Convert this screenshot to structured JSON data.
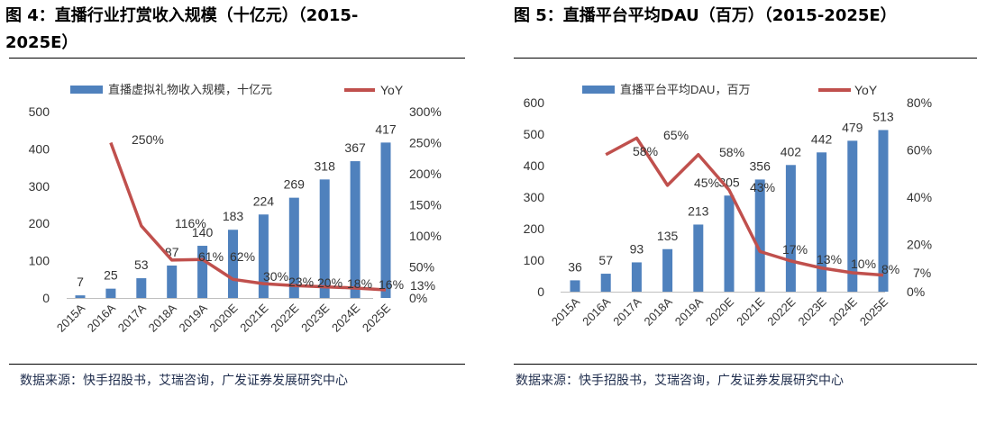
{
  "charts": [
    {
      "title_line1": "图 4：直播行业打赏收入规模（十亿元）（2015-",
      "title_line2": "2025E）",
      "source": "数据来源：快手招股书，艾瑞咨询，广发证券发展研究中心",
      "legend_bar": "直播虚拟礼物收入规模，十亿元",
      "legend_line": "YoY",
      "bar_label_list": [
        "7",
        "25",
        "53",
        "87",
        "140",
        "183",
        "224",
        "269",
        "318",
        "367",
        "417"
      ],
      "line_label_list": [
        "250%",
        "116%",
        "61%",
        "62%",
        "30%",
        "23%",
        "20%",
        "18%",
        "16%",
        "13%"
      ],
      "left_tick_labels": [
        "0",
        "100",
        "200",
        "300",
        "400",
        "500"
      ],
      "right_tick_labels": [
        "0%",
        "50%",
        "100%",
        "150%",
        "200%",
        "250%",
        "300%"
      ]
    },
    {
      "title_line1": "图 5：直播平台平均DAU（百万）（2015-2025E）",
      "source": "数据来源：快手招股书，艾瑞咨询，广发证券发展研究中心",
      "legend_bar": "直播平台平均DAU，百万",
      "legend_line": "YoY",
      "bar_label_list": [
        "36",
        "57",
        "93",
        "135",
        "213",
        "305",
        "356",
        "402",
        "442",
        "479",
        "513"
      ],
      "line_label_list": [
        "58%",
        "65%",
        "45%",
        "58%",
        "43%",
        "17%",
        "13%",
        "10%",
        "8%",
        "7%"
      ],
      "left_tick_labels": [
        "0",
        "100",
        "200",
        "300",
        "400",
        "500",
        "600"
      ],
      "right_tick_labels": [
        "0%",
        "20%",
        "40%",
        "60%",
        "80%"
      ]
    }
  ],
  "chart_data": [
    {
      "type": "bar",
      "title": "图 4：直播行业打赏收入规模（十亿元）（2015-2025E）",
      "categories": [
        "2015A",
        "2016A",
        "2017A",
        "2018A",
        "2019A",
        "2020E",
        "2021E",
        "2022E",
        "2023E",
        "2024E",
        "2025E"
      ],
      "series": [
        {
          "name": "直播虚拟礼物收入规模，十亿元",
          "type": "bar",
          "axis": "left",
          "color": "#4f81bd",
          "values": [
            7,
            25,
            53,
            87,
            140,
            183,
            224,
            269,
            318,
            367,
            417
          ]
        },
        {
          "name": "YoY",
          "type": "line",
          "axis": "right",
          "color": "#c0504d",
          "values": [
            null,
            250,
            116,
            61,
            62,
            30,
            23,
            20,
            18,
            16,
            13
          ]
        }
      ],
      "left_axis": {
        "min": 0,
        "max": 500,
        "step": 100
      },
      "right_axis": {
        "min": 0,
        "max": 300,
        "step": 50,
        "unit": "%"
      },
      "legend_position": "top",
      "grid": false
    },
    {
      "type": "bar",
      "title": "图 5：直播平台平均DAU（百万）（2015-2025E）",
      "categories": [
        "2015A",
        "2016A",
        "2017A",
        "2018A",
        "2019A",
        "2020E",
        "2021E",
        "2022E",
        "2023E",
        "2024E",
        "2025E"
      ],
      "series": [
        {
          "name": "直播平台平均DAU，百万",
          "type": "bar",
          "axis": "left",
          "color": "#4f81bd",
          "values": [
            36,
            57,
            93,
            135,
            213,
            305,
            356,
            402,
            442,
            479,
            513
          ]
        },
        {
          "name": "YoY",
          "type": "line",
          "axis": "right",
          "color": "#c0504d",
          "values": [
            null,
            58,
            65,
            45,
            58,
            43,
            17,
            13,
            10,
            8,
            7
          ]
        }
      ],
      "left_axis": {
        "min": 0,
        "max": 600,
        "step": 100
      },
      "right_axis": {
        "min": 0,
        "max": 80,
        "step": 20,
        "unit": "%"
      },
      "legend_position": "top",
      "grid": false
    }
  ]
}
